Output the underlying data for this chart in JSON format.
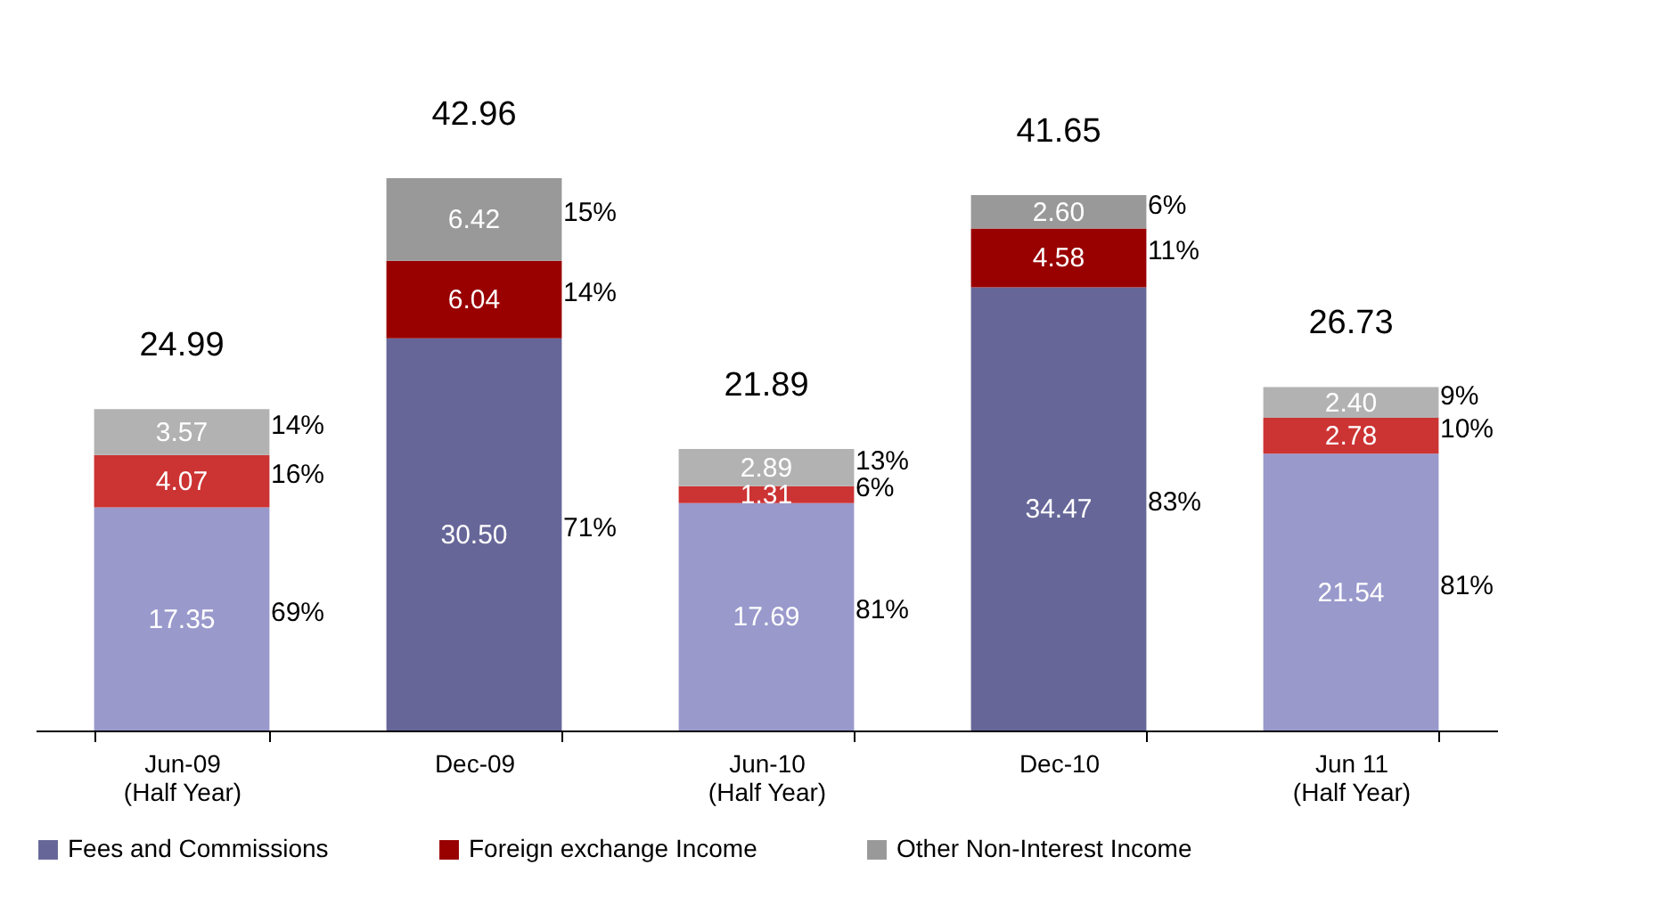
{
  "chart_data": {
    "type": "bar",
    "stacked": true,
    "categories": [
      "Jun-09\n(Half Year)",
      "Dec-09",
      "Jun-10\n(Half Year)",
      "Dec-10",
      "Jun 11\n(Half Year)"
    ],
    "series": [
      {
        "name": "Fees and Commissions",
        "color": "#666699",
        "colors": [
          "#9999cc",
          "#666699",
          "#9999cc",
          "#666699",
          "#9999cc"
        ],
        "values": [
          17.35,
          30.5,
          17.69,
          34.47,
          21.54
        ],
        "value_labels": [
          "17.35",
          "30.50",
          "17.69",
          "34.47",
          "21.54"
        ]
      },
      {
        "name": "Foreign exchange Income",
        "color": "#990000",
        "colors": [
          "#cc3333",
          "#990000",
          "#cc3333",
          "#990000",
          "#cc3333"
        ],
        "values": [
          4.07,
          6.04,
          1.31,
          4.58,
          2.78
        ],
        "value_labels": [
          "4.07",
          "6.04",
          "1.31",
          "4.58",
          "2.78"
        ]
      },
      {
        "name": "Other Non-Interest Income",
        "color": "#999999",
        "colors": [
          "#b2b2b2",
          "#999999",
          "#b2b2b2",
          "#999999",
          "#b2b2b2"
        ],
        "values": [
          3.57,
          6.42,
          2.89,
          2.6,
          2.4
        ],
        "value_labels": [
          "3.57",
          "6.42",
          "2.89",
          "2.60",
          "2.40"
        ]
      }
    ],
    "totals": [
      "24.99",
      "42.96",
      "21.89",
      "41.65",
      "26.73"
    ],
    "annotations": [
      "69%",
      "16%",
      "14%",
      "71%",
      "14%",
      "15%",
      "81%",
      "6%",
      "13%",
      "83%",
      "11%",
      "6%",
      "81%",
      "10%",
      "9%"
    ],
    "legend": "bottom"
  }
}
